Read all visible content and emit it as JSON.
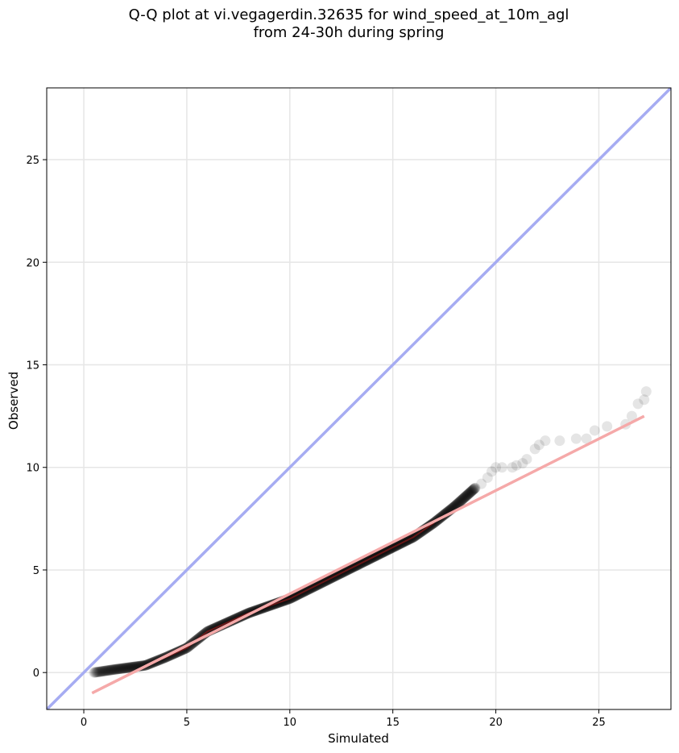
{
  "chart_data": {
    "type": "scatter",
    "title_lines": [
      "Q-Q plot at vi.vegagerdin.32635 for wind_speed_at_10m_agl",
      "from 24-30h during spring"
    ],
    "xlabel": "Simulated",
    "ylabel": "Observed",
    "xlim": [
      -1.8,
      28.5
    ],
    "ylim": [
      -1.8,
      28.5
    ],
    "xticks": [
      0,
      5,
      10,
      15,
      20,
      25
    ],
    "yticks": [
      0,
      5,
      10,
      15,
      20,
      25
    ],
    "grid": true,
    "colors": {
      "points": "#000000",
      "identity_line": "#a6acf2",
      "fit_line": "#f5a9a9",
      "core_line": "#8b1a1a"
    },
    "identity_line": {
      "x": [
        -1.8,
        28.5
      ],
      "y": [
        -1.8,
        28.5
      ]
    },
    "fit_line": {
      "x": [
        0.4,
        27.2
      ],
      "y": [
        -1.0,
        12.5
      ]
    },
    "quantile_knots": {
      "x": [
        0.5,
        1.5,
        3,
        4,
        5,
        6,
        8,
        10,
        12,
        14,
        16,
        17,
        18,
        19
      ],
      "y": [
        0.0,
        0.15,
        0.35,
        0.75,
        1.2,
        2.0,
        2.9,
        3.6,
        4.6,
        5.6,
        6.6,
        7.3,
        8.1,
        9.0
      ]
    },
    "tail_points": {
      "x": [
        19.3,
        19.6,
        19.8,
        20.0,
        20.3,
        20.8,
        21.0,
        21.3,
        21.5,
        21.9,
        22.1,
        22.4,
        23.1,
        23.9,
        24.4,
        24.8,
        25.4,
        26.3,
        26.6,
        26.9,
        27.2,
        27.3
      ],
      "y": [
        9.2,
        9.5,
        9.8,
        10.0,
        10.0,
        10.0,
        10.1,
        10.2,
        10.4,
        10.9,
        11.1,
        11.3,
        11.3,
        11.4,
        11.4,
        11.8,
        12.0,
        12.1,
        12.5,
        13.1,
        13.3,
        13.7
      ]
    }
  }
}
